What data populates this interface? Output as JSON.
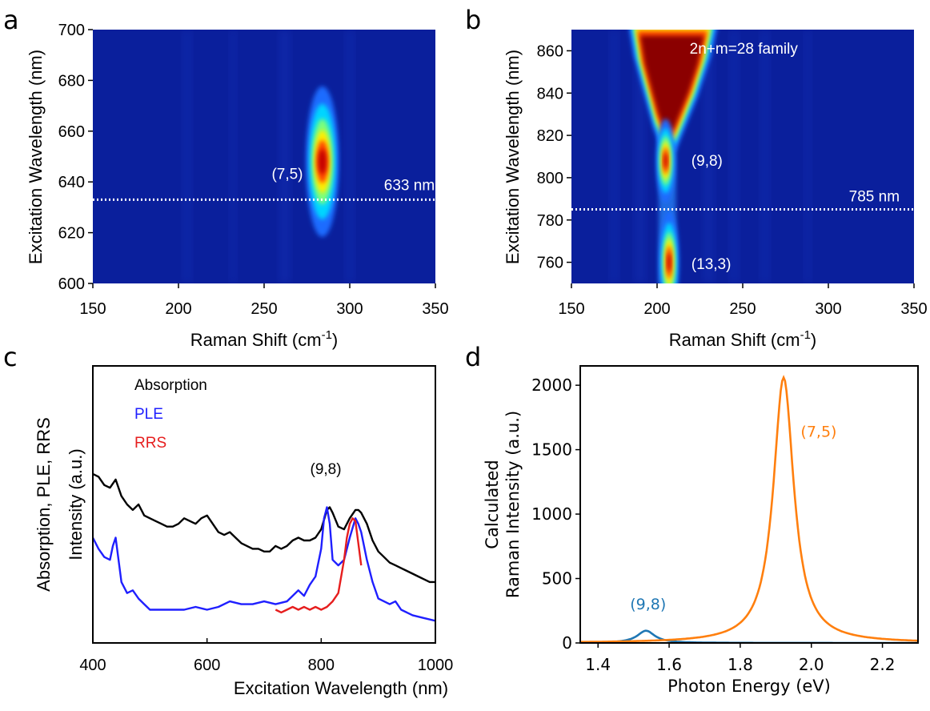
{
  "chart_data": [
    {
      "panel": "a",
      "type": "heatmap",
      "xlabel": "Raman Shift (cm",
      "xlabel_sup": "-1",
      "xlabel_end": ")",
      "ylabel": "Excitation Wavelength (nm)",
      "xlim": [
        150,
        350
      ],
      "ylim": [
        600,
        700
      ],
      "xticks": [
        "150",
        "200",
        "250",
        "300",
        "350"
      ],
      "yticks": [
        "600",
        "620",
        "640",
        "660",
        "680",
        "700"
      ],
      "background_color": "#0a1f9c",
      "hotspots": [
        {
          "x": 284,
          "y": 648,
          "sx": 3,
          "sy": 9,
          "amp": 1.0
        }
      ],
      "annotations": [
        {
          "text": "(7,5)",
          "x": 268,
          "y": 643
        }
      ],
      "reference_line": {
        "y": 633,
        "label": "633 nm",
        "label_x": 320
      }
    },
    {
      "panel": "b",
      "type": "heatmap",
      "xlabel": "Raman Shift (cm",
      "xlabel_sup": "-1",
      "xlabel_end": ")",
      "ylabel": "Excitation Wavelength (nm)",
      "xlim": [
        150,
        350
      ],
      "ylim": [
        750,
        870
      ],
      "xticks": [
        "150",
        "200",
        "250",
        "300",
        "350"
      ],
      "yticks": [
        "760",
        "780",
        "800",
        "820",
        "840",
        "860"
      ],
      "background_color": "#0a1f9c",
      "annotations": [
        {
          "text": "2n+m=28 family",
          "x": 219,
          "y": 861
        },
        {
          "text": "(9,8)",
          "x": 220,
          "y": 808
        },
        {
          "text": "(13,3)",
          "x": 220,
          "y": 759
        }
      ],
      "reference_line": {
        "y": 785,
        "label": "785 nm",
        "label_x": 312
      }
    },
    {
      "panel": "c",
      "type": "line",
      "xlabel": "Excitation Wavelength (nm)",
      "ylabel": "Absorption, PLE, RRS",
      "ylabel2": "Intensity (a.u.)",
      "xlim": [
        400,
        1000
      ],
      "ylim": [
        0,
        1
      ],
      "xticks": [
        "400",
        "600",
        "800",
        "1000"
      ],
      "legend": [
        "Absorption",
        "PLE",
        "RRS"
      ],
      "annotations": [
        {
          "text": "(9,8)",
          "x": 808,
          "y": 0.61
        }
      ],
      "series": [
        {
          "name": "Absorption",
          "color": "#000000",
          "x": [
            400,
            410,
            420,
            430,
            440,
            450,
            460,
            470,
            480,
            490,
            500,
            510,
            520,
            530,
            540,
            550,
            560,
            570,
            580,
            590,
            600,
            610,
            620,
            630,
            640,
            650,
            660,
            670,
            680,
            690,
            700,
            710,
            720,
            730,
            740,
            750,
            760,
            770,
            780,
            790,
            800,
            810,
            815,
            820,
            830,
            840,
            850,
            860,
            865,
            870,
            880,
            890,
            900,
            910,
            920,
            930,
            940,
            950,
            960,
            970,
            980,
            990,
            1000
          ],
          "y": [
            0.61,
            0.6,
            0.57,
            0.56,
            0.59,
            0.53,
            0.5,
            0.48,
            0.5,
            0.46,
            0.45,
            0.44,
            0.43,
            0.42,
            0.42,
            0.43,
            0.45,
            0.44,
            0.43,
            0.45,
            0.46,
            0.43,
            0.4,
            0.39,
            0.4,
            0.38,
            0.36,
            0.35,
            0.34,
            0.34,
            0.33,
            0.33,
            0.35,
            0.34,
            0.35,
            0.37,
            0.38,
            0.37,
            0.37,
            0.38,
            0.41,
            0.48,
            0.49,
            0.47,
            0.42,
            0.41,
            0.45,
            0.48,
            0.48,
            0.47,
            0.43,
            0.37,
            0.33,
            0.31,
            0.29,
            0.28,
            0.27,
            0.26,
            0.25,
            0.24,
            0.23,
            0.22,
            0.22
          ]
        },
        {
          "name": "PLE",
          "color": "#1f1fff",
          "x": [
            400,
            410,
            420,
            430,
            435,
            440,
            445,
            450,
            460,
            470,
            480,
            490,
            500,
            520,
            540,
            560,
            580,
            600,
            620,
            640,
            660,
            680,
            700,
            720,
            740,
            760,
            770,
            780,
            790,
            800,
            805,
            810,
            815,
            820,
            830,
            840,
            850,
            860,
            865,
            870,
            880,
            890,
            900,
            910,
            920,
            930,
            940,
            960,
            980,
            1000
          ],
          "y": [
            0.38,
            0.34,
            0.31,
            0.3,
            0.35,
            0.38,
            0.3,
            0.22,
            0.18,
            0.19,
            0.16,
            0.14,
            0.12,
            0.12,
            0.12,
            0.12,
            0.13,
            0.12,
            0.13,
            0.15,
            0.14,
            0.14,
            0.15,
            0.14,
            0.15,
            0.19,
            0.17,
            0.21,
            0.24,
            0.34,
            0.45,
            0.49,
            0.43,
            0.3,
            0.28,
            0.3,
            0.38,
            0.45,
            0.43,
            0.4,
            0.3,
            0.22,
            0.16,
            0.15,
            0.14,
            0.15,
            0.12,
            0.1,
            0.09,
            0.08
          ]
        },
        {
          "name": "RRS",
          "color": "#e61e1e",
          "x": [
            720,
            730,
            740,
            750,
            760,
            770,
            780,
            790,
            800,
            810,
            820,
            830,
            835,
            840,
            845,
            850,
            855,
            860,
            865,
            870
          ],
          "y": [
            0.12,
            0.11,
            0.12,
            0.13,
            0.12,
            0.13,
            0.12,
            0.13,
            0.12,
            0.13,
            0.15,
            0.18,
            0.24,
            0.3,
            0.38,
            0.43,
            0.45,
            0.44,
            0.36,
            0.28
          ]
        }
      ]
    },
    {
      "panel": "d",
      "type": "line",
      "xlabel": "Photon Energy (eV)",
      "ylabel": "Calculated",
      "ylabel2": "Raman Intensity (a.u.)",
      "xlim": [
        1.35,
        2.3
      ],
      "ylim": [
        0,
        2150
      ],
      "xticks": [
        "1.4",
        "1.6",
        "1.8",
        "2.0",
        "2.2"
      ],
      "yticks": [
        "0",
        "500",
        "1000",
        "1500",
        "2000"
      ],
      "series": [
        {
          "name": "(9,8)",
          "color": "#1f77b4",
          "center": 1.535,
          "amplitude": 95,
          "width": 0.03,
          "label_x": 1.49,
          "label_y": 260
        },
        {
          "name": "(7,5)",
          "color": "#ff7f0e",
          "center": 1.922,
          "amplitude": 2060,
          "width": 0.035,
          "label_x": 1.97,
          "label_y": 1600
        }
      ]
    }
  ],
  "panel_labels": [
    "a",
    "b",
    "c",
    "d"
  ]
}
